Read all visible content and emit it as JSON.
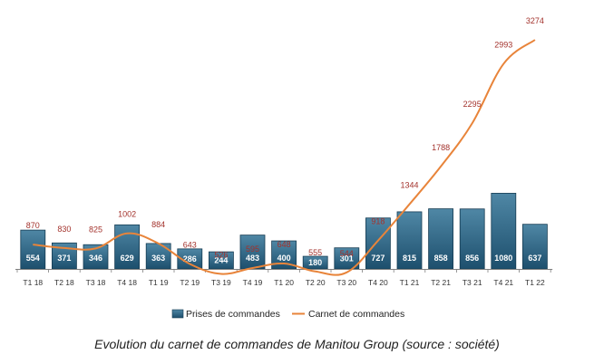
{
  "colors": {
    "bar_fill_top": "#4f87a5",
    "bar_fill_bottom": "#1d4f6d",
    "bar_stroke": "#163c53",
    "line": "#e8843a",
    "line_label": "#a3322c",
    "axis": "#7f7f7f"
  },
  "chart_data": {
    "type": "bar",
    "categories": [
      "T1 18",
      "T2 18",
      "T3 18",
      "T4 18",
      "T1 19",
      "T2 19",
      "T3 19",
      "T4 19",
      "T1 20",
      "T2 20",
      "T3 20",
      "T4 20",
      "T1 21",
      "T2 21",
      "T3 21",
      "T4 21",
      "T1 22"
    ],
    "series": [
      {
        "name": "Prises de commandes",
        "type": "bar",
        "values": [
          554,
          371,
          346,
          629,
          363,
          286,
          244,
          483,
          400,
          180,
          301,
          727,
          815,
          858,
          856,
          1080,
          637
        ]
      },
      {
        "name": "Carnet de commandes",
        "type": "line",
        "values": [
          870,
          830,
          825,
          1002,
          884,
          643,
          526,
          595,
          648,
          555,
          544,
          918,
          1344,
          1788,
          2295,
          2993,
          3274
        ]
      }
    ],
    "ylim": [
      0,
      3400
    ],
    "grid": false,
    "legend": "bottom-center",
    "title": "",
    "xlabel": "",
    "ylabel": ""
  },
  "caption": "Evolution du carnet de commandes de Manitou Group (source : société)"
}
